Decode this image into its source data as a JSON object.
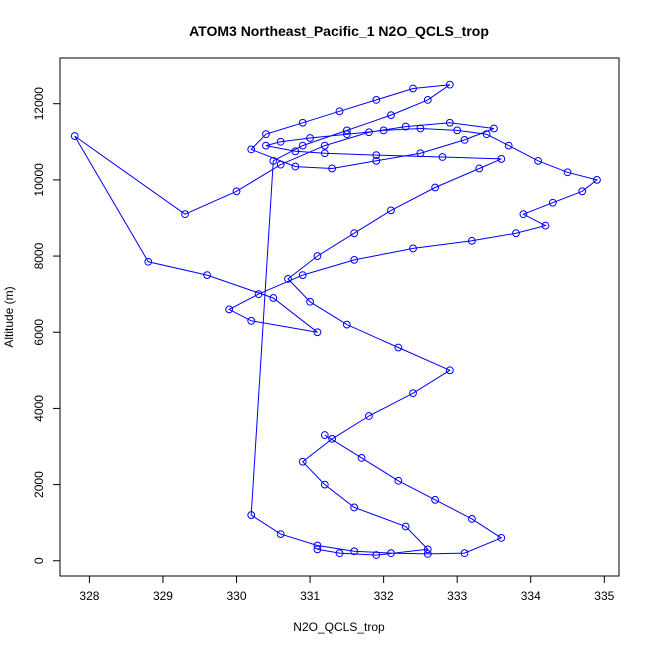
{
  "chart_data": {
    "type": "line",
    "title": "ATOM3 Northeast_Pacific_1 N2O_QCLS_trop",
    "xlabel": "N2O_QCLS_trop",
    "ylabel": "Altitude (m)",
    "xlim": [
      327.6,
      335.2
    ],
    "ylim": [
      -400,
      13200
    ],
    "xticks": [
      328,
      329,
      330,
      331,
      332,
      333,
      334,
      335
    ],
    "yticks": [
      0,
      2000,
      4000,
      6000,
      8000,
      10000,
      12000
    ],
    "grid": false,
    "line_color": "#0000ff",
    "marker": "open-circle",
    "series": [
      {
        "x": [
          331.1,
          331.4,
          331.9,
          332.6,
          332.3,
          331.6,
          331.2,
          330.9,
          331.3,
          331.8,
          332.4,
          332.9,
          332.2,
          331.5,
          331.0,
          330.7,
          331.1,
          331.6,
          332.1,
          332.7,
          333.3,
          333.6,
          332.8,
          331.9,
          331.2,
          330.8,
          330.4,
          330.6,
          331.0,
          331.5,
          332.0,
          332.5,
          333.0,
          333.4,
          333.7,
          334.1,
          334.5,
          334.9,
          334.7,
          334.3,
          333.9,
          334.2,
          333.8,
          333.2,
          332.4,
          331.6,
          330.9,
          330.3,
          329.9,
          330.2,
          331.1,
          330.5,
          329.6,
          328.8,
          327.8,
          329.3,
          330.0,
          330.6,
          331.2,
          331.8,
          332.3,
          332.9,
          333.5,
          333.1,
          332.5,
          331.9,
          331.3,
          330.8,
          330.2,
          330.4,
          330.9,
          331.4,
          331.9,
          332.4,
          332.9,
          332.6,
          332.1,
          331.5,
          330.9,
          330.5,
          330.2,
          330.6,
          331.1,
          331.6,
          332.1,
          332.6,
          333.1,
          333.6,
          333.2,
          332.7,
          332.2,
          331.7,
          331.2
        ],
        "y": [
          300,
          200,
          150,
          300,
          900,
          1400,
          2000,
          2600,
          3200,
          3800,
          4400,
          5000,
          5600,
          6200,
          6800,
          7400,
          8000,
          8600,
          9200,
          9800,
          10300,
          10550,
          10600,
          10650,
          10700,
          10750,
          10900,
          11000,
          11100,
          11200,
          11300,
          11350,
          11300,
          11200,
          10900,
          10500,
          10200,
          10000,
          9700,
          9400,
          9100,
          8800,
          8600,
          8400,
          8200,
          7900,
          7500,
          7000,
          6600,
          6300,
          6000,
          6900,
          7500,
          7850,
          11150,
          9100,
          9700,
          10400,
          10900,
          11250,
          11400,
          11500,
          11350,
          11050,
          10700,
          10500,
          10300,
          10350,
          10800,
          11200,
          11500,
          11800,
          12100,
          12400,
          12500,
          12100,
          11700,
          11300,
          10900,
          10500,
          1200,
          700,
          400,
          250,
          200,
          180,
          200,
          600,
          1100,
          1600,
          2100,
          2700,
          3300
        ]
      }
    ]
  }
}
